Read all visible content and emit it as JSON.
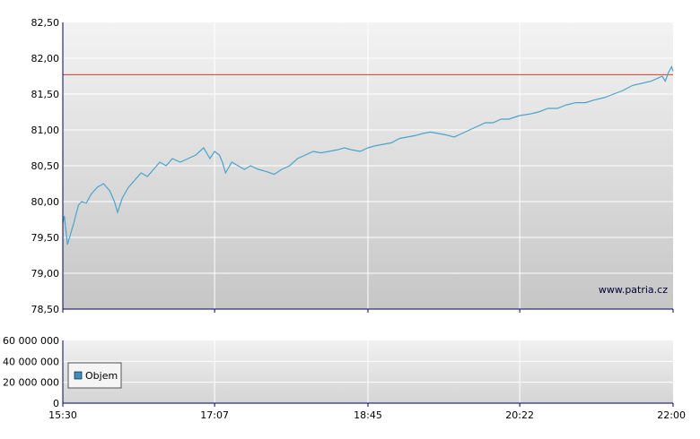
{
  "chart_data": [
    {
      "type": "line",
      "name": "price",
      "ylim": [
        78.5,
        82.5
      ],
      "y_ticks": [
        "82,50",
        "82,00",
        "81,50",
        "81,00",
        "80,50",
        "80,00",
        "79,50",
        "79,00",
        "78,50"
      ],
      "y_tick_values": [
        82.5,
        82.0,
        81.5,
        81.0,
        80.5,
        80.0,
        79.5,
        79.0,
        78.5
      ],
      "x_ticks": [
        "15:30",
        "17:07",
        "18:45",
        "20:22",
        "22:00"
      ],
      "x_range": [
        "15:30",
        "22:00"
      ],
      "reference_line": 81.77,
      "watermark": "www.patria.cz",
      "series": [
        {
          "color": "#4aa3cc",
          "points": [
            [
              "15:30",
              79.7
            ],
            [
              "15:31",
              79.8
            ],
            [
              "15:33",
              79.4
            ],
            [
              "15:35",
              79.55
            ],
            [
              "15:37",
              79.7
            ],
            [
              "15:40",
              79.95
            ],
            [
              "15:42",
              80.0
            ],
            [
              "15:45",
              79.98
            ],
            [
              "15:48",
              80.1
            ],
            [
              "15:52",
              80.2
            ],
            [
              "15:56",
              80.25
            ],
            [
              "16:00",
              80.15
            ],
            [
              "16:03",
              80.0
            ],
            [
              "16:05",
              79.85
            ],
            [
              "16:08",
              80.05
            ],
            [
              "16:12",
              80.2
            ],
            [
              "16:16",
              80.3
            ],
            [
              "16:20",
              80.4
            ],
            [
              "16:24",
              80.35
            ],
            [
              "16:28",
              80.45
            ],
            [
              "16:32",
              80.55
            ],
            [
              "16:36",
              80.5
            ],
            [
              "16:40",
              80.6
            ],
            [
              "16:45",
              80.55
            ],
            [
              "16:50",
              80.6
            ],
            [
              "16:55",
              80.65
            ],
            [
              "17:00",
              80.75
            ],
            [
              "17:04",
              80.6
            ],
            [
              "17:07",
              80.7
            ],
            [
              "17:10",
              80.65
            ],
            [
              "17:12",
              80.55
            ],
            [
              "17:14",
              80.4
            ],
            [
              "17:18",
              80.55
            ],
            [
              "17:22",
              80.5
            ],
            [
              "17:26",
              80.45
            ],
            [
              "17:30",
              80.5
            ],
            [
              "17:35",
              80.45
            ],
            [
              "17:40",
              80.42
            ],
            [
              "17:45",
              80.38
            ],
            [
              "17:50",
              80.45
            ],
            [
              "17:55",
              80.5
            ],
            [
              "18:00",
              80.6
            ],
            [
              "18:05",
              80.65
            ],
            [
              "18:10",
              80.7
            ],
            [
              "18:15",
              80.68
            ],
            [
              "18:20",
              80.7
            ],
            [
              "18:25",
              80.72
            ],
            [
              "18:30",
              80.75
            ],
            [
              "18:35",
              80.72
            ],
            [
              "18:40",
              80.7
            ],
            [
              "18:45",
              80.75
            ],
            [
              "18:50",
              80.78
            ],
            [
              "18:55",
              80.8
            ],
            [
              "19:00",
              80.82
            ],
            [
              "19:05",
              80.88
            ],
            [
              "19:10",
              80.9
            ],
            [
              "19:15",
              80.92
            ],
            [
              "19:20",
              80.95
            ],
            [
              "19:25",
              80.97
            ],
            [
              "19:30",
              80.95
            ],
            [
              "19:35",
              80.93
            ],
            [
              "19:40",
              80.9
            ],
            [
              "19:45",
              80.95
            ],
            [
              "19:50",
              81.0
            ],
            [
              "19:55",
              81.05
            ],
            [
              "20:00",
              81.1
            ],
            [
              "20:05",
              81.1
            ],
            [
              "20:10",
              81.15
            ],
            [
              "20:15",
              81.15
            ],
            [
              "20:22",
              81.2
            ],
            [
              "20:28",
              81.22
            ],
            [
              "20:34",
              81.25
            ],
            [
              "20:40",
              81.3
            ],
            [
              "20:46",
              81.3
            ],
            [
              "20:52",
              81.35
            ],
            [
              "20:58",
              81.38
            ],
            [
              "21:04",
              81.38
            ],
            [
              "21:10",
              81.42
            ],
            [
              "21:16",
              81.45
            ],
            [
              "21:22",
              81.5
            ],
            [
              "21:28",
              81.55
            ],
            [
              "21:34",
              81.62
            ],
            [
              "21:40",
              81.65
            ],
            [
              "21:46",
              81.68
            ],
            [
              "21:50",
              81.72
            ],
            [
              "21:53",
              81.75
            ],
            [
              "21:55",
              81.68
            ],
            [
              "21:57",
              81.8
            ],
            [
              "21:59",
              81.88
            ],
            [
              "22:00",
              81.82
            ]
          ]
        }
      ]
    },
    {
      "type": "bar",
      "name": "volume",
      "ylim": [
        0,
        60000000
      ],
      "y_ticks": [
        "60 000 000",
        "40 000 000",
        "20 000 000",
        "0"
      ],
      "y_tick_values": [
        60000000,
        40000000,
        20000000,
        0
      ],
      "x_ticks": [
        "15:30",
        "17:07",
        "18:45",
        "20:22",
        "22:00"
      ],
      "legend": {
        "label": "Objem",
        "color": "#3b8fc4",
        "placement": "bottom-left"
      },
      "series": [
        {
          "name": "Objem",
          "values": []
        }
      ]
    }
  ]
}
